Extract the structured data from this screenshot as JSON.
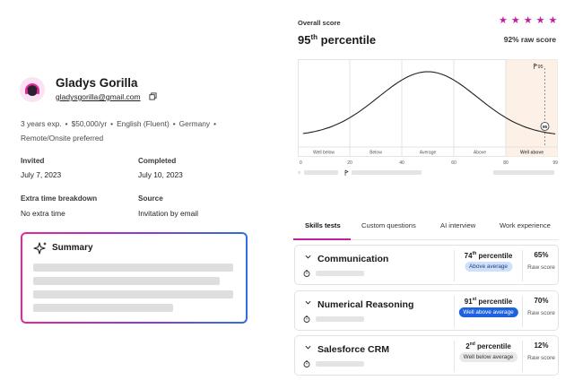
{
  "profile": {
    "name": "Gladys Gorilla",
    "email": "gladysgorilla@gmail.com",
    "experience": "3 years exp.",
    "salary": "$50,000/yr",
    "language": "English (Fluent)",
    "country": "Germany",
    "work_mode": "Remote/Onsite preferred",
    "invited_label": "Invited",
    "invited_value": "July 7, 2023",
    "completed_label": "Completed",
    "completed_value": "July 10, 2023",
    "extra_time_label": "Extra time breakdown",
    "extra_time_value": "No extra time",
    "source_label": "Source",
    "source_value": "Invitation by email"
  },
  "summary": {
    "title": "Summary"
  },
  "score": {
    "label": "Overall score",
    "percentile_num": "95",
    "percentile_suffix": "th",
    "percentile_word": "percentile",
    "raw": "92% raw score",
    "stars": 5,
    "star_color": "#c21fa0"
  },
  "chart_data": {
    "type": "area",
    "x_ticks": [
      "0",
      "20",
      "40",
      "60",
      "80",
      "99"
    ],
    "bands": [
      "Well below",
      "Below",
      "Average",
      "Above",
      "Well above"
    ],
    "marker_label": "95",
    "marker_value": 95,
    "candidate_label": "95",
    "highlight_color": "#fdf0e6"
  },
  "tabs": [
    {
      "label": "Skills tests",
      "active": true
    },
    {
      "label": "Custom questions",
      "active": false
    },
    {
      "label": "AI interview",
      "active": false
    },
    {
      "label": "Work experience",
      "active": false
    }
  ],
  "skills": [
    {
      "name": "Communication",
      "pct_num": "74",
      "pct_suffix": "th",
      "pct_word": "percentile",
      "badge": "Above average",
      "badge_bg": "#cfe0fb",
      "badge_fg": "#1f3f7a",
      "raw": "65%",
      "raw_label": "Raw score"
    },
    {
      "name": "Numerical Reasoning",
      "pct_num": "91",
      "pct_suffix": "st",
      "pct_word": "percentile",
      "badge": "Well above average",
      "badge_bg": "#1f62e0",
      "badge_fg": "#ffffff",
      "raw": "70%",
      "raw_label": "Raw score"
    },
    {
      "name": "Salesforce CRM",
      "pct_num": "2",
      "pct_suffix": "nd",
      "pct_word": "percentile",
      "badge": "Well below average",
      "badge_bg": "#e9e9e9",
      "badge_fg": "#333333",
      "raw": "12%",
      "raw_label": "Raw score"
    }
  ]
}
